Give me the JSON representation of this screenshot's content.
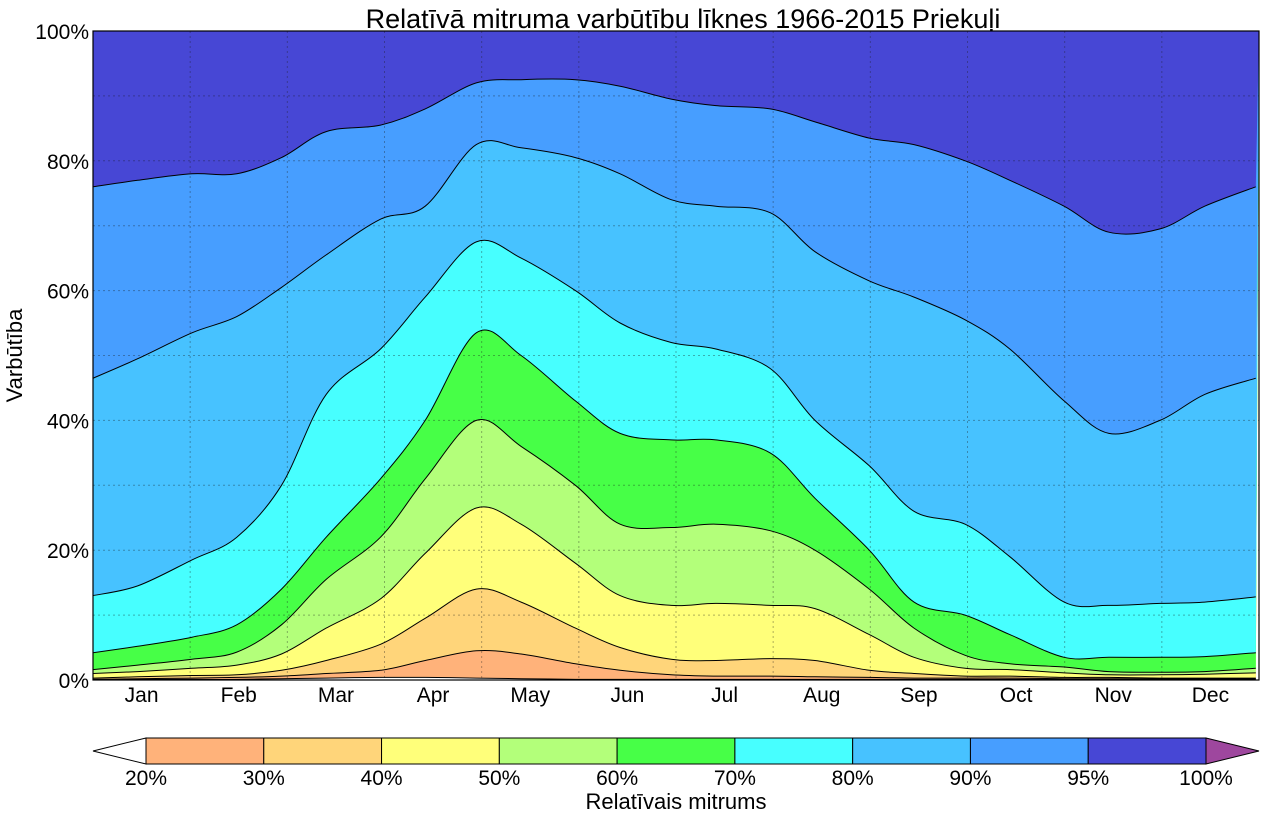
{
  "chart_data": {
    "type": "area",
    "title": "Relatīvā mitruma varbūtību līknes 1966-2015 Priekuļi",
    "ylabel": "Varbūtība",
    "xlabel": "",
    "ylim": [
      0,
      100
    ],
    "y_ticks": [
      "0%",
      "20%",
      "40%",
      "60%",
      "80%",
      "100%"
    ],
    "categories": [
      "Jan",
      "Feb",
      "Mar",
      "Apr",
      "May",
      "Jun",
      "Jul",
      "Aug",
      "Sep",
      "Oct",
      "Nov",
      "Dec"
    ],
    "grid": true,
    "x_day": [
      1,
      15,
      32,
      46,
      60,
      74,
      91,
      105,
      121,
      135,
      152,
      166,
      182,
      196,
      213,
      227,
      244,
      258,
      274,
      288,
      305,
      319,
      335,
      349,
      365
    ],
    "boundaries": [
      {
        "name": "20%",
        "values": [
          0.1,
          0.1,
          0.1,
          0.1,
          0.2,
          0.3,
          0.4,
          0.4,
          0.3,
          0.2,
          0.1,
          0.1,
          0.1,
          0.1,
          0.1,
          0.1,
          0.1,
          0.1,
          0.1,
          0.1,
          0.1,
          0.1,
          0.1,
          0.1,
          0.1
        ]
      },
      {
        "name": "30%",
        "values": [
          0.1,
          0.2,
          0.3,
          0.4,
          0.6,
          1.0,
          1.5,
          3.0,
          4.5,
          4.0,
          2.5,
          1.5,
          0.8,
          0.6,
          0.6,
          0.5,
          0.4,
          0.3,
          0.3,
          0.3,
          0.2,
          0.2,
          0.2,
          0.2,
          0.2
        ]
      },
      {
        "name": "40%",
        "values": [
          0.3,
          0.5,
          0.7,
          0.8,
          1.5,
          3.0,
          5.5,
          9.5,
          14.0,
          12.0,
          8.0,
          5.0,
          3.2,
          3.0,
          3.3,
          3.0,
          1.5,
          1.0,
          0.6,
          0.6,
          0.4,
          0.4,
          0.3,
          0.3,
          0.3
        ]
      },
      {
        "name": "50%",
        "values": [
          1.0,
          1.3,
          1.8,
          2.3,
          4.0,
          8.0,
          12.5,
          19.5,
          26.5,
          24.0,
          18.0,
          13.0,
          11.5,
          11.8,
          11.5,
          11.0,
          7.0,
          3.5,
          1.8,
          1.6,
          1.1,
          0.8,
          0.8,
          0.9,
          1.1
        ]
      },
      {
        "name": "60%",
        "values": [
          1.6,
          2.3,
          3.2,
          4.3,
          8.5,
          15.5,
          22.0,
          31.0,
          40.0,
          36.0,
          30.0,
          24.0,
          23.5,
          24.0,
          23.0,
          20.0,
          14.0,
          8.0,
          3.8,
          2.5,
          2.0,
          1.3,
          1.2,
          1.3,
          1.8
        ]
      },
      {
        "name": "70%",
        "values": [
          4.2,
          5.2,
          6.6,
          8.5,
          14.0,
          22.0,
          31.0,
          40.0,
          53.5,
          50.0,
          43.0,
          38.0,
          37.0,
          37.0,
          35.0,
          28.0,
          20.0,
          12.0,
          10.0,
          7.0,
          3.5,
          3.5,
          3.5,
          3.6,
          4.2
        ]
      },
      {
        "name": "80%",
        "values": [
          13.0,
          14.5,
          18.5,
          22.0,
          30.0,
          44.0,
          51.0,
          59.0,
          67.5,
          65.0,
          60.0,
          55.0,
          52.0,
          51.0,
          48.0,
          40.0,
          33.0,
          26.0,
          24.0,
          19.0,
          12.0,
          11.5,
          11.8,
          12.0,
          12.8
        ]
      },
      {
        "name": "90%",
        "values": [
          46.5,
          49.5,
          53.5,
          56.0,
          60.5,
          65.5,
          71.0,
          73.0,
          82.5,
          82.0,
          80.5,
          78.0,
          74.0,
          73.0,
          72.0,
          66.0,
          61.5,
          59.0,
          55.5,
          51.0,
          43.0,
          38.0,
          40.0,
          44.0,
          46.5
        ]
      },
      {
        "name": "95%",
        "values": [
          76.0,
          77.0,
          78.0,
          78.0,
          80.5,
          84.5,
          85.5,
          88.0,
          92.0,
          92.5,
          92.5,
          91.5,
          89.5,
          88.5,
          88.0,
          86.0,
          83.5,
          82.5,
          80.0,
          77.0,
          73.0,
          69.0,
          69.5,
          73.0,
          76.0
        ]
      }
    ],
    "legend": {
      "label": "Relatīvais mitrums",
      "tick_labels": [
        "20%",
        "30%",
        "40%",
        "50%",
        "60%",
        "70%",
        "80%",
        "90%",
        "95%",
        "100%"
      ],
      "band_colors": [
        "#ffffff",
        "#ffb27a",
        "#ffd57a",
        "#ffff7a",
        "#b3ff7a",
        "#47ff47",
        "#47ffff",
        "#47c2ff",
        "#479eff",
        "#4747d5",
        "#9e479e"
      ],
      "placement": "bottom"
    }
  }
}
